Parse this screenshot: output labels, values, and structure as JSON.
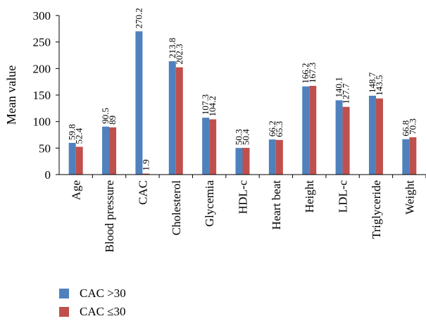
{
  "chart_data": {
    "type": "bar",
    "title": "",
    "xlabel": "",
    "ylabel": "Mean value",
    "ylim": [
      0,
      300
    ],
    "yticks": [
      0,
      50,
      100,
      150,
      200,
      250,
      300
    ],
    "categories": [
      "Age",
      "Blood pressure",
      "CAC",
      "Cholesterol",
      "Glycemia",
      "HDL-c",
      "Heart beat",
      "Height",
      "LDL-c",
      "Triglyceride",
      "Weight"
    ],
    "series": [
      {
        "name": "CAC >30",
        "color": "#4f81bd",
        "values": [
          59.8,
          90.5,
          270.2,
          213.8,
          107.3,
          50.3,
          66.2,
          166.2,
          140.1,
          148.7,
          66.8
        ],
        "labels": [
          "59.8",
          "90.5",
          "270.2",
          "213.8",
          "107.3",
          "50.3",
          "66.2",
          "166.2",
          "140.1",
          "148.7",
          "66.8"
        ]
      },
      {
        "name": "CAC ≤30",
        "color": "#c0504d",
        "values": [
          52.4,
          89,
          1.9,
          202.3,
          104.2,
          50.4,
          65.3,
          167.3,
          127.7,
          143.5,
          70.3
        ],
        "labels": [
          "52.4",
          "89",
          "1.9",
          "202.3",
          "104.2",
          "50.4",
          "65.3",
          "167.3",
          "127.7",
          "143.5",
          "70.3"
        ]
      }
    ],
    "grid": false,
    "legend_position": "bottom-left"
  }
}
